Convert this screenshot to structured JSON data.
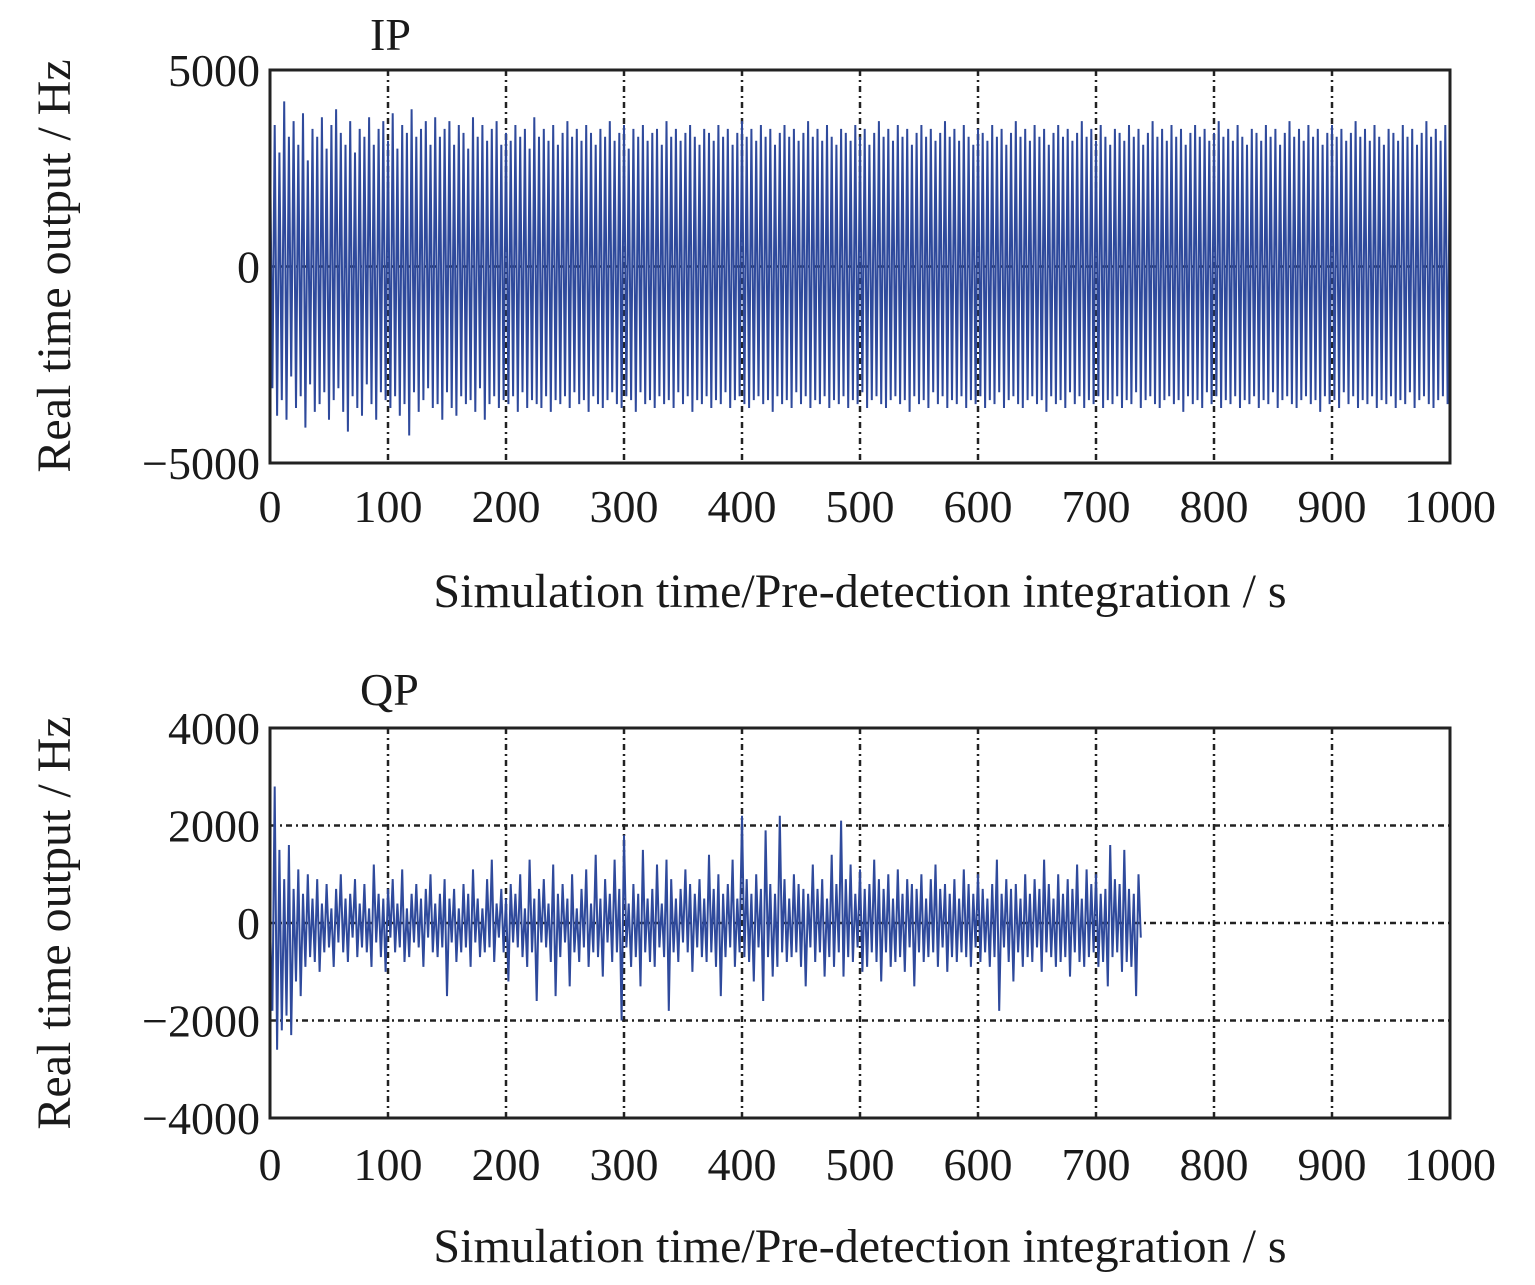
{
  "chart_data": [
    {
      "type": "line",
      "title": "IP",
      "xlabel": "Simulation time/Pre-detection integration / s",
      "ylabel": "Real time output / Hz",
      "xlim": [
        0,
        1000
      ],
      "ylim": [
        -5000,
        5000
      ],
      "xticks": [
        "0",
        "100",
        "200",
        "300",
        "400",
        "500",
        "600",
        "700",
        "800",
        "900",
        "1000"
      ],
      "yticks": [
        "5000",
        "0",
        "−5000"
      ],
      "ytick_values": [
        5000,
        0,
        -5000
      ],
      "grid": true,
      "series": [
        {
          "color": "#2f4a9c",
          "description_values": "dense alternating signal between about +3500 and -3500",
          "x_step": 2,
          "values": [
            3200,
            -3100,
            3600,
            -3800,
            2900,
            -3400,
            4200,
            -3900,
            3300,
            -2800,
            3700,
            -3600,
            3100,
            -3300,
            3900,
            -4100,
            2700,
            -3000,
            3500,
            -3700,
            3300,
            -3500,
            3800,
            -3200,
            3000,
            -3900,
            3600,
            -3400,
            4000,
            -3100,
            3400,
            -3700,
            3100,
            -4200,
            3700,
            -3300,
            2900,
            -3600,
            3500,
            -3800,
            3300,
            -3000,
            3800,
            -3500,
            3100,
            -3900,
            3500,
            -3200,
            3700,
            -3400,
            3200,
            -3600,
            3900,
            -3300,
            3000,
            -3800,
            3600,
            -3500,
            3400,
            -4300,
            4000,
            -3200,
            3300,
            -3700,
            3500,
            -3400,
            3700,
            -3100,
            3100,
            -3600,
            3800,
            -3500,
            3300,
            -3900,
            3500,
            -3200,
            3700,
            -3600,
            3100,
            -3800,
            3600,
            -3300,
            3400,
            -3500,
            3000,
            -3400,
            3800,
            -3700,
            3300,
            -3100,
            3600,
            -3900,
            3200,
            -3500,
            3500,
            -3300,
            3700,
            -3600,
            3100,
            -3400,
            3400,
            -3500,
            3200,
            -3300,
            3600,
            -3700,
            3300,
            -3200,
            3500,
            -3600,
            3000,
            -3400,
            3800,
            -3500,
            3300,
            -3600,
            3500,
            -3300,
            3200,
            -3700,
            3600,
            -3400,
            3100,
            -3500,
            3400,
            -3300,
            3700,
            -3600,
            3300,
            -3200,
            3500,
            -3500,
            3200,
            -3400,
            3600,
            -3700,
            3400,
            -3300,
            3100,
            -3500,
            3500,
            -3600,
            3300,
            -3400,
            3700,
            -3200,
            3200,
            -3500,
            3400,
            -3600,
            3600,
            -3300,
            3000,
            -3400,
            3500,
            -3700,
            3300,
            -3200,
            3600,
            -3500,
            3200,
            -3400,
            3400,
            -3600,
            3500,
            -3300,
            3100,
            -3500,
            3700,
            -3400,
            3300,
            -3600,
            3500,
            -3200,
            3200,
            -3500,
            3400,
            -3300,
            3600,
            -3700,
            3300,
            -3400,
            3100,
            -3500,
            3500,
            -3300,
            3400,
            -3600,
            3200,
            -3400,
            3600,
            -3500,
            3300,
            -3200,
            3500,
            -3600,
            3100,
            -3400,
            3400,
            -3300,
            3700,
            -3500,
            3300,
            -3600,
            3500,
            -3400,
            3200,
            -3300,
            3600,
            -3500,
            3300,
            -3400,
            3500,
            -3700,
            3100,
            -3300,
            3400,
            -3500,
            3600,
            -3400,
            3300,
            -3600,
            3500,
            -3200,
            3200,
            -3500,
            3400,
            -3300,
            3700,
            -3600,
            3300,
            -3400,
            3500,
            -3500,
            3200,
            -3300,
            3600,
            -3600,
            3300,
            -3400,
            3100,
            -3500,
            3500,
            -3300,
            3400,
            -3600,
            3200,
            -3400,
            3600,
            -3500,
            3300,
            -3200,
            3500,
            -3600,
            3100,
            -3400,
            3400,
            -3300,
            3700,
            -3500,
            3300,
            -3600,
            3500,
            -3400,
            3200,
            -3300,
            3600,
            -3500,
            3300,
            -3400,
            3500,
            -3700,
            3100,
            -3300,
            3400,
            -3500,
            3600,
            -3400,
            3300,
            -3600,
            3500,
            -3200,
            3200,
            -3500,
            3400,
            -3300,
            3700,
            -3600,
            3300,
            -3400,
            3500,
            -3500,
            3200,
            -3300,
            3600,
            -3600,
            3300,
            -3400,
            3100,
            -3500,
            3500,
            -3300,
            3400,
            -3600,
            3200,
            -3400,
            3600,
            -3500,
            3300,
            -3200,
            3500,
            -3600,
            3100,
            -3400,
            3400,
            -3300,
            3700,
            -3500,
            3300,
            -3600,
            3500,
            -3400,
            3200,
            -3300,
            3600,
            -3500,
            3300,
            -3400,
            3500,
            -3700,
            3100,
            -3300,
            3400,
            -3500,
            3600,
            -3400,
            3300,
            -3600,
            3500,
            -3200,
            3200,
            -3500,
            3400,
            -3300,
            3700,
            -3600,
            3300,
            -3400,
            3500,
            -3500,
            3200,
            -3300,
            3600,
            -3600,
            3300,
            -3400,
            3100,
            -3500,
            3500,
            -3300,
            3400,
            -3600,
            3200,
            -3400,
            3600,
            -3500,
            3300,
            -3200,
            3500,
            -3600,
            3100,
            -3400,
            3400,
            -3300,
            3700,
            -3500,
            3300,
            -3600,
            3500,
            -3400,
            3200,
            -3300,
            3600,
            -3500,
            3300,
            -3400,
            3500,
            -3700,
            3100,
            -3300,
            3400,
            -3500,
            3600,
            -3400,
            3300,
            -3600,
            3500,
            -3200,
            3200,
            -3500,
            3400,
            -3300,
            3700,
            -3600,
            3300,
            -3400,
            3500,
            -3500,
            3200,
            -3300,
            3600,
            -3600,
            3300,
            -3400,
            3100,
            -3500,
            3500,
            -3300,
            3400,
            -3600,
            3200,
            -3400,
            3600,
            -3500,
            3300,
            -3200,
            3500,
            -3600,
            3100,
            -3400,
            3400,
            -3300,
            3700,
            -3500,
            3300,
            -3600,
            3500,
            -3400,
            3200,
            -3300,
            3600,
            -3500,
            3300,
            -3400,
            3500,
            -3700,
            3100,
            -3300,
            3400,
            -3500,
            3600,
            -3400,
            3300,
            -3600,
            3500,
            -3200,
            3200,
            -3500,
            3400,
            -3300,
            3700,
            -3600,
            3300,
            -3400,
            3500,
            -3500,
            3200,
            -3300,
            3600,
            -3600,
            3300,
            -3400,
            3100,
            -3500,
            3500,
            -3300,
            3400,
            -3600,
            3200,
            -3400,
            3600,
            -3500,
            3300,
            -3200,
            3500,
            -3600,
            3100,
            -3400,
            3400,
            -3300,
            3700,
            -3500,
            3300,
            -3600,
            3500,
            -3400,
            3200,
            -3300,
            3600,
            -3500,
            3300,
            -3400,
            3500,
            -3700,
            3100,
            -3300,
            3400,
            -3500,
            3600,
            -3400,
            3300,
            -3600,
            3500,
            -3200,
            3200,
            -3500,
            3400,
            -3300,
            3700,
            -3600,
            3300,
            -3400,
            3500,
            -3500,
            3200,
            -3300,
            3600,
            -3600,
            3300,
            -3400,
            3100,
            -3500,
            3500,
            -3300,
            3400,
            -3600,
            3200,
            -3400,
            3600,
            -3500,
            3300,
            -3200,
            3500,
            -3600,
            3100,
            -3400,
            2800,
            -3000,
            3400,
            -2600
          ]
        }
      ]
    },
    {
      "type": "line",
      "title": "QP",
      "xlabel": "Simulation time/Pre-detection integration / s",
      "ylabel": "Real time output / Hz",
      "xlim": [
        0,
        1000
      ],
      "ylim": [
        -4000,
        4000
      ],
      "xticks": [
        "0",
        "100",
        "200",
        "300",
        "400",
        "500",
        "600",
        "700",
        "800",
        "900",
        "1000"
      ],
      "yticks": [
        "4000",
        "2000",
        "0",
        "−2000",
        "−4000"
      ],
      "ytick_values": [
        4000,
        2000,
        0,
        -2000,
        -4000
      ],
      "grid": true,
      "series": [
        {
          "color": "#2f4a9c",
          "x_step": 2,
          "values": [
            0,
            -1800,
            2800,
            -2600,
            1500,
            -2200,
            900,
            -1900,
            1600,
            -2300,
            700,
            -1200,
            1100,
            -1500,
            600,
            -900,
            1000,
            -700,
            500,
            -800,
            900,
            -1000,
            400,
            -600,
            800,
            -500,
            300,
            -900,
            700,
            -400,
            1000,
            -600,
            500,
            -800,
            600,
            -300,
            900,
            -700,
            400,
            -500,
            800,
            -600,
            300,
            -900,
            1200,
            -400,
            600,
            -700,
            500,
            -1000,
            700,
            -300,
            900,
            -600,
            400,
            -500,
            1100,
            -800,
            300,
            -700,
            600,
            -400,
            800,
            -500,
            500,
            -900,
            700,
            -300,
            1000,
            -600,
            400,
            -700,
            600,
            -500,
            900,
            -1500,
            500,
            -400,
            700,
            -800,
            300,
            -600,
            800,
            -500,
            600,
            -900,
            1100,
            -400,
            500,
            -700,
            300,
            -600,
            900,
            -500,
            1300,
            -800,
            400,
            -300,
            700,
            -600,
            500,
            -1200,
            800,
            -400,
            600,
            -500,
            1000,
            -700,
            300,
            -900,
            1300,
            -600,
            500,
            -1600,
            700,
            -400,
            900,
            -500,
            400,
            -800,
            1200,
            -1500,
            600,
            -700,
            800,
            -400,
            500,
            -1300,
            1000,
            -600,
            300,
            -800,
            700,
            -500,
            1100,
            -900,
            400,
            -600,
            1400,
            -700,
            500,
            -1100,
            900,
            -400,
            600,
            -800,
            1300,
            -600,
            700,
            -2000,
            1800,
            -500,
            400,
            -900,
            800,
            -700,
            600,
            -1300,
            1500,
            -600,
            500,
            -800,
            700,
            -900,
            1200,
            -500,
            400,
            -700,
            1300,
            -1800,
            900,
            -600,
            500,
            -800,
            700,
            -400,
            1100,
            -600,
            800,
            -1000,
            600,
            -500,
            900,
            -700,
            500,
            -800,
            1400,
            -600,
            700,
            -900,
            1000,
            -1500,
            600,
            -700,
            800,
            -500,
            1300,
            -900,
            500,
            -600,
            2200,
            -700,
            900,
            -800,
            600,
            -1200,
            1000,
            -500,
            700,
            -1600,
            1900,
            -700,
            800,
            -1100,
            600,
            -900,
            2200,
            -600,
            900,
            -800,
            500,
            -700,
            1000,
            -600,
            800,
            -900,
            700,
            -1300,
            600,
            -500,
            1200,
            -800,
            700,
            -600,
            900,
            -1100,
            500,
            -700,
            1400,
            -900,
            800,
            -600,
            2100,
            -1100,
            900,
            -700,
            1200,
            -800,
            600,
            -500,
            1100,
            -1000,
            700,
            -900,
            800,
            -600,
            1300,
            -800,
            900,
            -1200,
            700,
            -600,
            1000,
            -900,
            500,
            -800,
            1100,
            -700,
            600,
            -1000,
            900,
            -500,
            800,
            -1300,
            700,
            -600,
            1000,
            -800,
            500,
            -700,
            900,
            -600,
            1200,
            -900,
            700,
            -500,
            800,
            -1000,
            600,
            -700,
            900,
            -800,
            500,
            -600,
            1100,
            -700,
            800,
            -900,
            600,
            -500,
            1000,
            -800,
            700,
            -600,
            500,
            -900,
            800,
            -700,
            1300,
            -1800,
            600,
            -500,
            900,
            -800,
            700,
            -1200,
            800,
            -600,
            500,
            -900,
            1000,
            -700,
            600,
            -800,
            900,
            -500,
            700,
            -1000,
            1300,
            -600,
            800,
            -700,
            500,
            -900,
            1000,
            -800,
            600,
            -700,
            900,
            -1100,
            700,
            -600,
            1200,
            -800,
            500,
            -900,
            1100,
            -700,
            800,
            -600,
            1000,
            -900,
            600,
            -800,
            700,
            -1300,
            1600,
            -700,
            900,
            -600,
            800,
            -1000,
            1500,
            -800,
            700,
            -900,
            600,
            -1500,
            1000,
            -300
          ]
        }
      ]
    }
  ]
}
